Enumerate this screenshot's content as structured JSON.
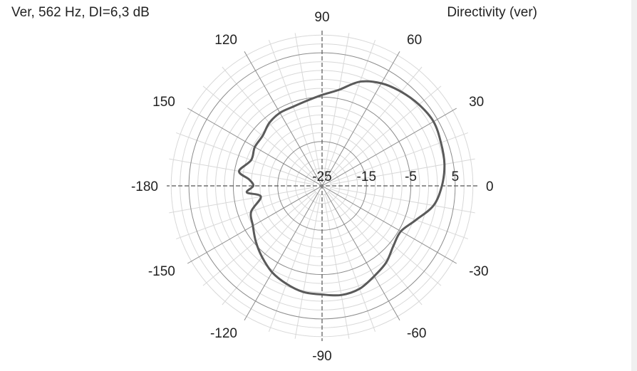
{
  "header": {
    "info": "Ver, 562 Hz, DI=6,3 dB",
    "title": "Directivity (ver)"
  },
  "chart_data": {
    "type": "polar-line",
    "title": "Directivity (ver)",
    "subtitle": "Ver, 562 Hz, DI=6,3 dB",
    "angle_unit": "deg",
    "angle_ticks": [
      0,
      30,
      60,
      90,
      120,
      150,
      -180,
      -150,
      -120,
      -90,
      -60,
      -30
    ],
    "angle_tick_labels": [
      "0",
      "30",
      "60",
      "90",
      "120",
      "150",
      "-180",
      "-150",
      "-120",
      "-90",
      "-60",
      "-30"
    ],
    "radial_range_db": [
      -25,
      10
    ],
    "radial_ticks": [
      -25,
      -15,
      -5,
      5
    ],
    "radial_tick_labels": [
      "-25",
      "-15",
      "-5",
      "5"
    ],
    "radial_major_step_db": 10,
    "radial_minor_step_db": 2,
    "angular_minor_step_deg": 10,
    "grid": true,
    "colors": {
      "curve": "#5a5a5a",
      "major_grid": "#8c8c8c",
      "minor_grid": "#d8d8d8",
      "axes": "#555555"
    },
    "series": [
      {
        "angles": [
          0,
          10,
          20,
          30,
          40,
          50,
          60,
          70,
          80,
          90,
          100,
          110,
          120,
          130,
          140,
          150,
          160,
          170,
          175,
          180,
          -175,
          -170,
          -160,
          -150,
          -140,
          -130,
          -120,
          -110,
          -100,
          -90,
          -80,
          -70,
          -60,
          -50,
          -40,
          -30,
          -20,
          -10
        ],
        "values": [
          2,
          3,
          3.5,
          4,
          3.5,
          2.7,
          1.7,
          0,
          -3,
          -4.5,
          -5.5,
          -6,
          -6,
          -6.5,
          -7.5,
          -7.5,
          -8,
          -6,
          -8.5,
          -9.5,
          -8,
          -11,
          -8,
          -7,
          -5.5,
          -4,
          -2.5,
          -1.5,
          -0.7,
          -0.5,
          0,
          -0.3,
          -1.5,
          -2.5,
          -4,
          -4.5,
          -2.5,
          0.5
        ]
      }
    ]
  }
}
